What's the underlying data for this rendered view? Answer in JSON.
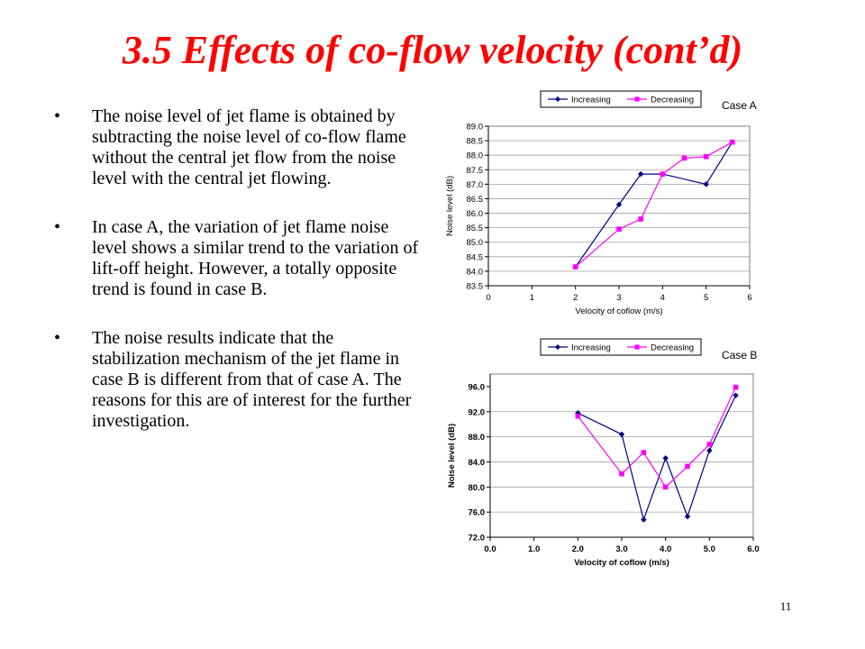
{
  "slide": {
    "title": "3.5 Effects of co-flow velocity (cont’d)",
    "bullet_glyph": "•",
    "bullets": [
      "The noise level of jet flame is obtained by subtracting the noise level of co-flow flame without the central jet flow from the noise level with the central jet flowing.",
      "In case A, the variation of jet flame noise level shows a similar trend to the variation of lift-off height. However, a totally opposite trend is found in case B.",
      "The noise results indicate that the stabilization mechanism of the jet flame in case B is different from that of case A. The reasons for this are of interest for the further investigation."
    ],
    "page_number": "11"
  },
  "chart_data": [
    {
      "type": "line",
      "case_label": "Case A",
      "xlabel": "Velocity of coflow (m/s)",
      "ylabel": "Noise level (dB)",
      "xlim": [
        0,
        6
      ],
      "ylim": [
        83.5,
        89.0
      ],
      "xticks": [
        0,
        1,
        2,
        3,
        4,
        5,
        6
      ],
      "xtick_labels": [
        "0",
        "1",
        "2",
        "3",
        "4",
        "5",
        "6"
      ],
      "yticks": [
        83.5,
        84.0,
        84.5,
        85.0,
        85.5,
        86.0,
        86.5,
        87.0,
        87.5,
        88.0,
        88.5,
        89.0
      ],
      "ytick_labels": [
        "83.5",
        "84.0",
        "84.5",
        "85.0",
        "85.5",
        "86.0",
        "86.5",
        "87.0",
        "87.5",
        "88.0",
        "88.5",
        "89.0"
      ],
      "grid": "horizontal",
      "legend": "top",
      "series": [
        {
          "name": "Increasing",
          "color": "#000080",
          "marker": "diamond",
          "x": [
            2,
            3,
            3.5,
            4,
            5,
            5.6
          ],
          "y": [
            84.15,
            86.3,
            87.35,
            87.35,
            87.0,
            88.45
          ]
        },
        {
          "name": "Decreasing",
          "color": "#ff00ff",
          "marker": "square",
          "x": [
            2,
            3,
            3.5,
            4,
            4.5,
            5,
            5.6
          ],
          "y": [
            84.15,
            85.45,
            85.8,
            87.35,
            87.9,
            87.95,
            88.45
          ]
        }
      ]
    },
    {
      "type": "line",
      "case_label": "Case B",
      "xlabel": "Velocity of coflow (m/s)",
      "ylabel": "Noise level (dB)",
      "xlim": [
        0,
        6
      ],
      "ylim": [
        72,
        98
      ],
      "xticks": [
        0,
        1,
        2,
        3,
        4,
        5,
        6
      ],
      "xtick_labels": [
        "0.0",
        "1.0",
        "2.0",
        "3.0",
        "4.0",
        "5.0",
        "6.0"
      ],
      "yticks": [
        72,
        76,
        80,
        84,
        88,
        92,
        96
      ],
      "ytick_labels": [
        "72.0",
        "76.0",
        "80.0",
        "84.0",
        "88.0",
        "92.0",
        "96.0"
      ],
      "grid": "horizontal",
      "legend": "top",
      "series": [
        {
          "name": "Increasing",
          "color": "#000080",
          "marker": "diamond",
          "x": [
            2,
            3,
            3.5,
            4,
            4.5,
            5,
            5.6
          ],
          "y": [
            91.8,
            88.4,
            74.8,
            84.6,
            75.3,
            85.8,
            94.6
          ]
        },
        {
          "name": "Decreasing",
          "color": "#ff00ff",
          "marker": "square",
          "x": [
            2,
            3,
            3.5,
            4,
            4.5,
            5,
            5.6
          ],
          "y": [
            91.3,
            82.1,
            85.5,
            80.0,
            83.3,
            86.8,
            95.9
          ]
        }
      ]
    }
  ]
}
